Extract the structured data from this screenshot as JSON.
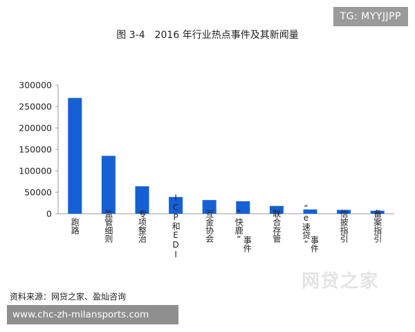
{
  "watermark": {
    "tag": "TG: MYYJJPP",
    "url": "www.chc-zh-milansports.com",
    "logo_text": "网贷之家"
  },
  "source_note": "资料来源：网贷之家、盈灿咨询",
  "colors": {
    "bar": "#1560d4",
    "axis": "#999999",
    "text": "#222222"
  },
  "chart_data": {
    "type": "bar",
    "title": "图 3-4　2016 年行业热点事件及其新闻量",
    "xlabel": "",
    "ylabel": "",
    "ylim": [
      0,
      300000
    ],
    "yticks": [
      "0",
      "50000",
      "100000",
      "150000",
      "200000",
      "250000",
      "300000"
    ],
    "grid": false,
    "categories": [
      "跑路",
      "监管细则",
      "专项整治",
      "ICP和EDI",
      "互金协会",
      "“快鹿”事件",
      "联合存管",
      "“e速贷”事件",
      "信披指引",
      "备案指引"
    ],
    "category_label_lines": [
      [
        "跑路"
      ],
      [
        "监管细则"
      ],
      [
        "专项整治"
      ],
      [
        "ICP和EDI"
      ],
      [
        "互金协会"
      ],
      [
        "“快鹿”",
        "事件"
      ],
      [
        "联合存管"
      ],
      [
        "“e速贷”",
        "事件"
      ],
      [
        "信披指引"
      ],
      [
        "备案指引"
      ]
    ],
    "values": [
      270000,
      135000,
      64000,
      39000,
      32000,
      29000,
      18000,
      10000,
      9000,
      7000
    ]
  }
}
